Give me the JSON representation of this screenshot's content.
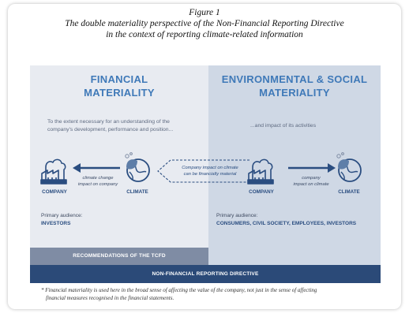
{
  "caption": {
    "figure_label": "Figure 1",
    "title_line1": "The double materiality perspective of the Non-Financial Reporting Directive",
    "title_line2": "in the context of reporting climate-related information"
  },
  "left_panel": {
    "title_line1": "FINANCIAL",
    "title_line2": "MATERIALITY",
    "description_line1": "To the extent necessary for an understanding of the",
    "description_line2": "company's development, performance and position...",
    "company_label": "COMPANY",
    "climate_label": "CLIMATE",
    "arrow_label_line1": "climate change",
    "arrow_label_line2": "impact on company",
    "audience_label": "Primary audience:",
    "audience_value": "INVESTORS",
    "band_label": "RECOMMENDATIONS OF THE TCFD"
  },
  "middle": {
    "arrow_label_line1": "Company impact on climate",
    "arrow_label_line2": "can be financially material"
  },
  "right_panel": {
    "title_line1": "ENVIRONMENTAL & SOCIAL",
    "title_line2": "MATERIALITY",
    "description": "...and impact of its activities",
    "company_label": "COMPANY",
    "climate_label": "CLIMATE",
    "arrow_label_line1": "company",
    "arrow_label_line2": "impact on climate",
    "audience_label": "Primary audience:",
    "audience_value": "CONSUMERS, CIVIL SOCIETY, EMPLOYEES, INVESTORS"
  },
  "bottom_band": {
    "label": "NON-FINANCIAL REPORTING DIRECTIVE"
  },
  "footnote": {
    "line1": "* Financial materiality is used here in the broad sense of affecting the value of the company, not just in the sense of affecting",
    "line2": "financial measures recognised in the financial statements."
  },
  "colors": {
    "title_blue": "#3f79b8",
    "navy": "#2b4a78",
    "left_panel_bg": "#e8ebf1",
    "right_panel_bg": "#cfd8e5",
    "tcfd_band": "#7f8ca4"
  },
  "icons": [
    "factory-icon",
    "leaf-globe-icon",
    "arrow-left-icon",
    "arrow-right-icon",
    "dashed-arrow-left-icon"
  ]
}
